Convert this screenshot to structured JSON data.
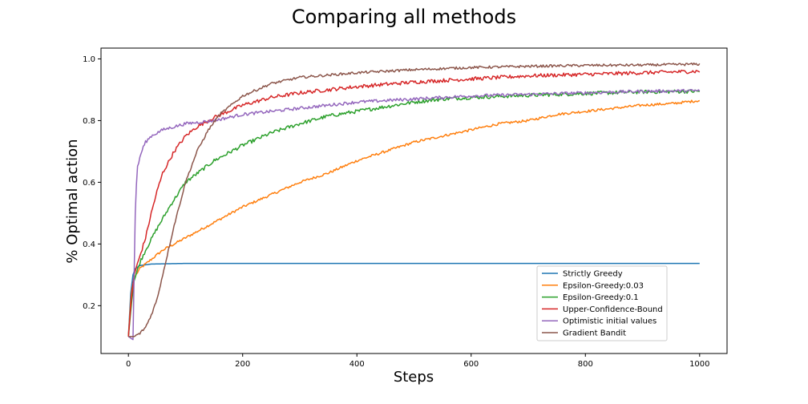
{
  "chart_data": {
    "type": "line",
    "title": "Comparing all methods",
    "xlabel": "Steps",
    "ylabel": "% Optimal action",
    "xlim": [
      -48,
      1048
    ],
    "ylim": [
      0.045,
      1.035
    ],
    "xticks": [
      0,
      200,
      400,
      600,
      800,
      1000
    ],
    "xtick_labels": [
      "0",
      "200",
      "400",
      "600",
      "800",
      "1000"
    ],
    "yticks": [
      0.2,
      0.4,
      0.6,
      0.8,
      1.0
    ],
    "ytick_labels": [
      "0.2",
      "0.4",
      "0.6",
      "0.8",
      "1.0"
    ],
    "grid": false,
    "legend_position": "lower-right",
    "series": [
      {
        "name": "Strictly Greedy",
        "color": "#1f77b4",
        "noise": 0.0,
        "points": [
          [
            0,
            0.1
          ],
          [
            4,
            0.24
          ],
          [
            8,
            0.3
          ],
          [
            12,
            0.32
          ],
          [
            20,
            0.33
          ],
          [
            40,
            0.335
          ],
          [
            100,
            0.337
          ],
          [
            1000,
            0.337
          ]
        ]
      },
      {
        "name": "Epsilon-Greedy:0.03",
        "color": "#ff7f0e",
        "noise": 0.004,
        "points": [
          [
            0,
            0.1
          ],
          [
            5,
            0.24
          ],
          [
            10,
            0.29
          ],
          [
            20,
            0.32
          ],
          [
            40,
            0.35
          ],
          [
            60,
            0.38
          ],
          [
            100,
            0.42
          ],
          [
            150,
            0.47
          ],
          [
            200,
            0.52
          ],
          [
            250,
            0.56
          ],
          [
            300,
            0.6
          ],
          [
            350,
            0.63
          ],
          [
            400,
            0.67
          ],
          [
            450,
            0.7
          ],
          [
            500,
            0.73
          ],
          [
            550,
            0.75
          ],
          [
            600,
            0.77
          ],
          [
            650,
            0.79
          ],
          [
            700,
            0.8
          ],
          [
            750,
            0.82
          ],
          [
            800,
            0.83
          ],
          [
            850,
            0.84
          ],
          [
            900,
            0.85
          ],
          [
            950,
            0.855
          ],
          [
            1000,
            0.865
          ]
        ]
      },
      {
        "name": "Epsilon-Greedy:0.1",
        "color": "#2ca02c",
        "noise": 0.006,
        "points": [
          [
            0,
            0.1
          ],
          [
            5,
            0.2
          ],
          [
            10,
            0.28
          ],
          [
            20,
            0.34
          ],
          [
            30,
            0.38
          ],
          [
            50,
            0.45
          ],
          [
            75,
            0.53
          ],
          [
            100,
            0.6
          ],
          [
            150,
            0.67
          ],
          [
            200,
            0.72
          ],
          [
            250,
            0.76
          ],
          [
            300,
            0.79
          ],
          [
            350,
            0.815
          ],
          [
            400,
            0.83
          ],
          [
            450,
            0.845
          ],
          [
            500,
            0.86
          ],
          [
            550,
            0.87
          ],
          [
            600,
            0.875
          ],
          [
            700,
            0.882
          ],
          [
            800,
            0.888
          ],
          [
            900,
            0.893
          ],
          [
            1000,
            0.895
          ]
        ]
      },
      {
        "name": "Upper-Confidence-Bound",
        "color": "#d62728",
        "noise": 0.006,
        "points": [
          [
            0,
            0.1
          ],
          [
            5,
            0.22
          ],
          [
            10,
            0.3
          ],
          [
            20,
            0.36
          ],
          [
            30,
            0.42
          ],
          [
            40,
            0.5
          ],
          [
            50,
            0.57
          ],
          [
            60,
            0.63
          ],
          [
            80,
            0.7
          ],
          [
            100,
            0.75
          ],
          [
            120,
            0.78
          ],
          [
            150,
            0.81
          ],
          [
            200,
            0.85
          ],
          [
            250,
            0.875
          ],
          [
            300,
            0.89
          ],
          [
            400,
            0.91
          ],
          [
            500,
            0.925
          ],
          [
            600,
            0.935
          ],
          [
            700,
            0.945
          ],
          [
            800,
            0.95
          ],
          [
            900,
            0.955
          ],
          [
            1000,
            0.96
          ]
        ]
      },
      {
        "name": "Optimistic initial values",
        "color": "#9467bd",
        "noise": 0.005,
        "points": [
          [
            0,
            0.1
          ],
          [
            8,
            0.09
          ],
          [
            10,
            0.3
          ],
          [
            12,
            0.5
          ],
          [
            15,
            0.64
          ],
          [
            20,
            0.68
          ],
          [
            25,
            0.71
          ],
          [
            30,
            0.73
          ],
          [
            40,
            0.75
          ],
          [
            60,
            0.77
          ],
          [
            80,
            0.78
          ],
          [
            100,
            0.79
          ],
          [
            150,
            0.8
          ],
          [
            200,
            0.82
          ],
          [
            300,
            0.84
          ],
          [
            400,
            0.86
          ],
          [
            500,
            0.87
          ],
          [
            600,
            0.88
          ],
          [
            700,
            0.885
          ],
          [
            800,
            0.89
          ],
          [
            900,
            0.895
          ],
          [
            1000,
            0.897
          ]
        ]
      },
      {
        "name": "Gradient Bandit",
        "color": "#8c564b",
        "noise": 0.004,
        "points": [
          [
            0,
            0.1
          ],
          [
            10,
            0.1
          ],
          [
            20,
            0.11
          ],
          [
            30,
            0.13
          ],
          [
            40,
            0.17
          ],
          [
            50,
            0.22
          ],
          [
            60,
            0.3
          ],
          [
            70,
            0.38
          ],
          [
            80,
            0.46
          ],
          [
            90,
            0.53
          ],
          [
            100,
            0.6
          ],
          [
            120,
            0.7
          ],
          [
            140,
            0.77
          ],
          [
            160,
            0.82
          ],
          [
            180,
            0.85
          ],
          [
            200,
            0.88
          ],
          [
            250,
            0.92
          ],
          [
            300,
            0.94
          ],
          [
            400,
            0.955
          ],
          [
            500,
            0.965
          ],
          [
            600,
            0.972
          ],
          [
            700,
            0.976
          ],
          [
            800,
            0.979
          ],
          [
            900,
            0.98
          ],
          [
            1000,
            0.983
          ]
        ]
      }
    ]
  }
}
